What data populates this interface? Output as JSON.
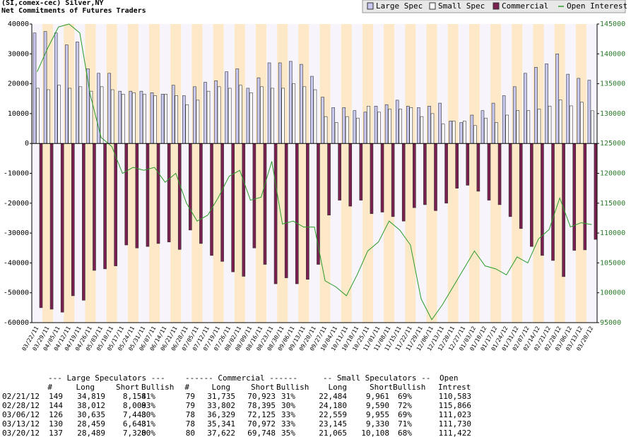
{
  "chart_data": {
    "type": "bar",
    "title": "(SI,comex-cec) Silver,NY",
    "subtitle": "Net Commitments of Futures Traders",
    "categories": [
      "03/22/11",
      "03/29/11",
      "04/05/11",
      "04/12/11",
      "04/19/11",
      "04/26/11",
      "05/03/11",
      "05/10/11",
      "05/17/11",
      "05/24/11",
      "05/31/11",
      "06/07/11",
      "06/14/11",
      "06/21/11",
      "06/28/11",
      "07/05/11",
      "07/12/11",
      "07/19/11",
      "07/26/11",
      "08/02/11",
      "08/09/11",
      "08/16/11",
      "08/23/11",
      "08/30/11",
      "09/06/11",
      "09/13/11",
      "09/20/11",
      "09/27/11",
      "10/04/11",
      "10/11/11",
      "10/18/11",
      "10/25/11",
      "11/01/11",
      "11/08/11",
      "11/15/11",
      "11/22/11",
      "11/29/11",
      "12/06/11",
      "12/13/11",
      "12/20/11",
      "12/27/11",
      "01/03/12",
      "01/10/12",
      "01/17/12",
      "01/24/12",
      "01/31/12",
      "02/07/12",
      "02/14/12",
      "02/21/12",
      "02/28/12",
      "03/06/12",
      "03/13/12",
      "03/20/12"
    ],
    "series": [
      {
        "name": "Large Spec",
        "color": "#c8c8f0",
        "values": [
          37000,
          37500,
          37000,
          33000,
          34000,
          25000,
          23500,
          23500,
          17500,
          17500,
          17500,
          17000,
          16500,
          19500,
          16000,
          19000,
          20500,
          21000,
          24000,
          25000,
          18500,
          22000,
          27000,
          27000,
          27500,
          26500,
          22500,
          15500,
          12000,
          12000,
          11000,
          10500,
          12500,
          13000,
          14500,
          12500,
          12000,
          12500,
          13500,
          7500,
          7000,
          9500,
          11000,
          13500,
          16000,
          19000,
          23500,
          25500,
          26665,
          30003,
          23192,
          21816,
          21169
        ]
      },
      {
        "name": "Small Spec",
        "color": "#ffffff",
        "values": [
          18500,
          18000,
          19500,
          18500,
          19000,
          17500,
          19000,
          18000,
          16500,
          17000,
          16500,
          16000,
          16500,
          16000,
          13000,
          14500,
          17500,
          19000,
          18500,
          19500,
          17000,
          19000,
          18500,
          18500,
          20000,
          19000,
          18000,
          9000,
          7000,
          9000,
          8500,
          12500,
          10500,
          11500,
          11500,
          12000,
          9000,
          10000,
          6500,
          7500,
          7500,
          6000,
          8500,
          7000,
          9500,
          11000,
          11000,
          11500,
          12523,
          14590,
          12604,
          13815,
          10957
        ]
      },
      {
        "name": "Commercial",
        "color": "#7a2050",
        "values": [
          -55000,
          -55500,
          -56500,
          -51000,
          -52500,
          -42500,
          -42000,
          -41000,
          -34000,
          -35000,
          -34500,
          -33500,
          -33000,
          -35500,
          -29000,
          -33500,
          -37500,
          -39500,
          -43000,
          -44500,
          -35000,
          -40500,
          -47000,
          -45000,
          -47000,
          -45500,
          -40500,
          -24000,
          -19000,
          -21000,
          -19000,
          -23500,
          -23000,
          -24500,
          -26000,
          -21500,
          -20500,
          -22500,
          -20000,
          -15000,
          -14000,
          -16000,
          -19000,
          -20500,
          -24500,
          -28500,
          -34500,
          -37500,
          -39188,
          -44593,
          -35796,
          -35631,
          -32126
        ]
      },
      {
        "name": "Open Interest",
        "type": "line",
        "axis": "y2",
        "color": "#2a9a2a",
        "values": [
          137000,
          141000,
          144500,
          145000,
          143500,
          133000,
          126000,
          124500,
          120000,
          121000,
          120500,
          121000,
          118500,
          120000,
          115000,
          112000,
          113000,
          116000,
          119500,
          120500,
          115500,
          116000,
          122000,
          111500,
          112000,
          111000,
          111000,
          102000,
          101000,
          99500,
          103000,
          107000,
          108500,
          112000,
          110500,
          108000,
          99000,
          95500,
          98000,
          101000,
          104000,
          107000,
          104500,
          104000,
          103000,
          106000,
          105000,
          109000,
          110583,
          115866,
          111023,
          111730,
          111422
        ]
      }
    ],
    "ylim": [
      -60000,
      40000
    ],
    "yticks": [
      -60000,
      -50000,
      -40000,
      -30000,
      -20000,
      -10000,
      0,
      10000,
      20000,
      30000,
      40000
    ],
    "y2lim": [
      95000,
      145000
    ],
    "y2ticks": [
      95000,
      100000,
      105000,
      110000,
      115000,
      120000,
      125000,
      130000,
      135000,
      140000,
      145000
    ],
    "legend": "top-right"
  },
  "table": {
    "group_headers": [
      "--- Large Speculators ---",
      "------ Commercial ------",
      "-- Small Speculators --",
      "Open"
    ],
    "columns": [
      "#",
      "Long",
      "Short",
      "Bullish",
      "#",
      "Long",
      "Short",
      "Bullish",
      "Long",
      "Short",
      "Bullish",
      "Intrest"
    ],
    "rows": [
      [
        "02/21/12",
        "149",
        "34,819",
        "8,154",
        "81%",
        "79",
        "31,735",
        "70,923",
        "31%",
        "22,484",
        "9,961",
        "69%",
        "110,583"
      ],
      [
        "02/28/12",
        "144",
        "38,012",
        "8,009",
        "83%",
        "79",
        "33,802",
        "78,395",
        "30%",
        "24,180",
        "9,590",
        "72%",
        "115,866"
      ],
      [
        "03/06/12",
        "126",
        "30,635",
        "7,443",
        "80%",
        "78",
        "36,329",
        "72,125",
        "33%",
        "22,559",
        "9,955",
        "69%",
        "111,023"
      ],
      [
        "03/13/12",
        "130",
        "28,459",
        "6,643",
        "81%",
        "78",
        "35,341",
        "70,972",
        "33%",
        "23,145",
        "9,330",
        "71%",
        "111,730"
      ],
      [
        "03/20/12",
        "137",
        "28,489",
        "7,320",
        "80%",
        "80",
        "37,622",
        "69,748",
        "35%",
        "21,065",
        "10,108",
        "68%",
        "111,422"
      ]
    ]
  }
}
